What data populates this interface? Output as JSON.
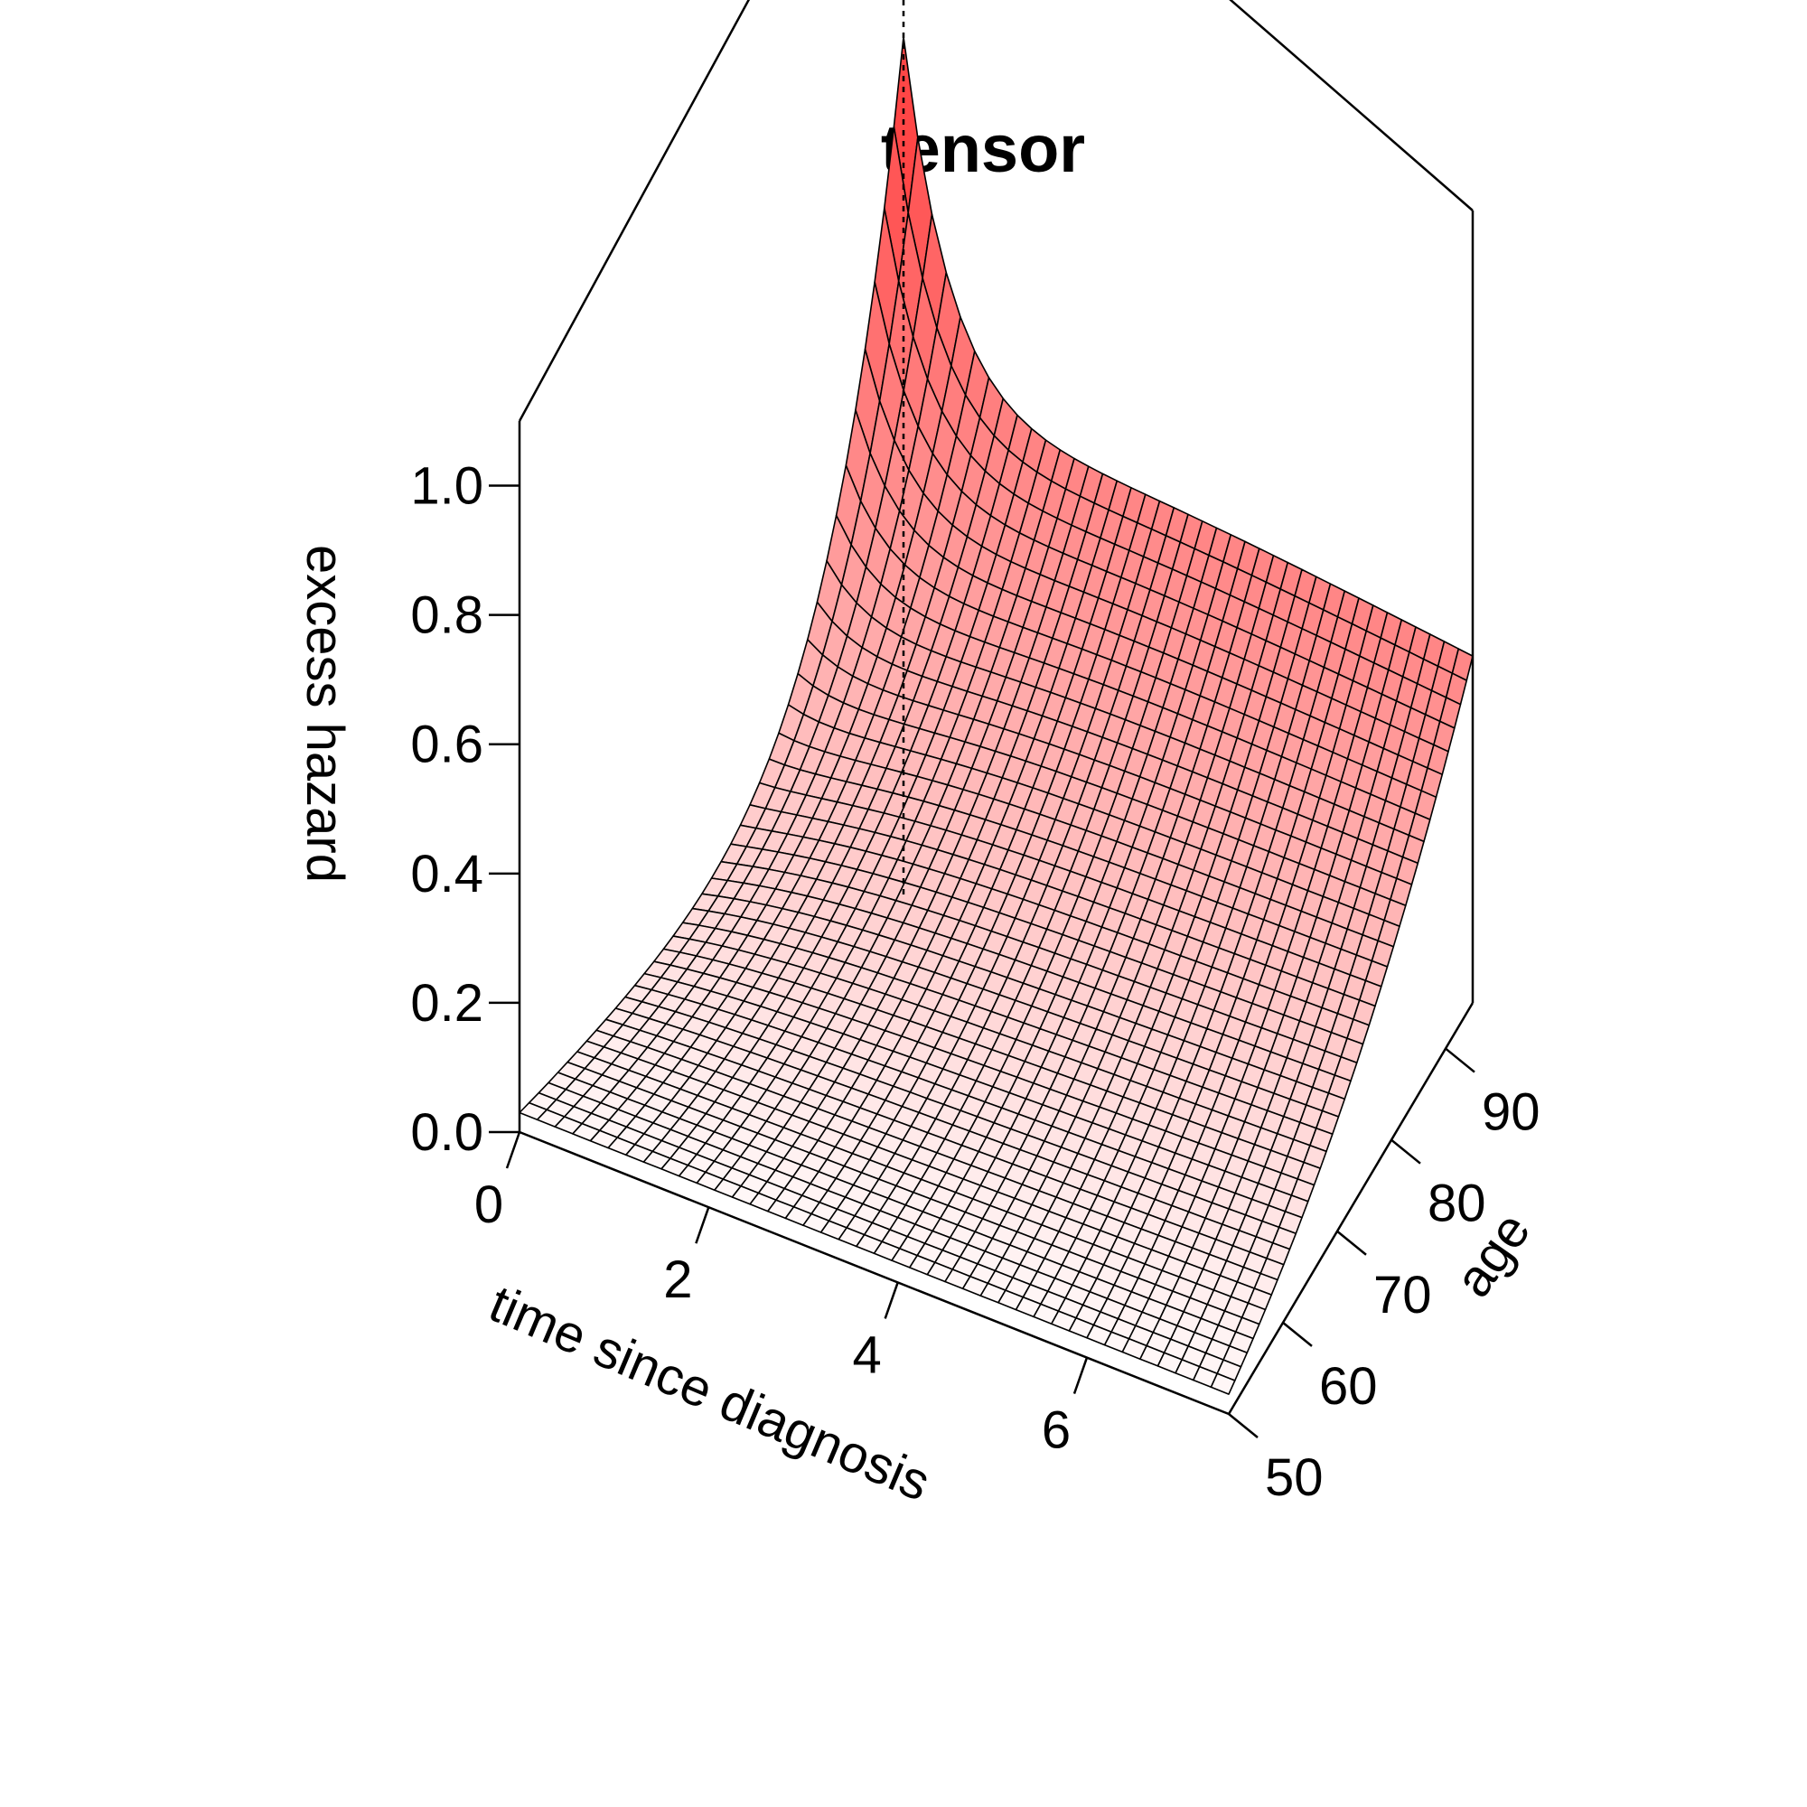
{
  "chart_data": {
    "type": "surface",
    "title": "tensor",
    "xlabel": "time since diagnosis",
    "ylabel": "age",
    "zlabel": "excess hazard",
    "xlim": [
      0,
      7.5
    ],
    "ylim": [
      50,
      95
    ],
    "zlim": [
      0,
      1.1
    ],
    "x_ticks": [
      "0",
      "2",
      "4",
      "6"
    ],
    "x_tick_values": [
      0,
      2,
      4,
      6
    ],
    "y_ticks": [
      "50",
      "60",
      "70",
      "80",
      "90"
    ],
    "y_tick_values": [
      50,
      60,
      70,
      80,
      90
    ],
    "z_ticks": [
      "0.0",
      "0.2",
      "0.4",
      "0.6",
      "0.8",
      "1.0"
    ],
    "z_tick_values": [
      0,
      0.2,
      0.4,
      0.6,
      0.8,
      1.0
    ],
    "grid_size": 40,
    "surface_samples": {
      "note_axes": "z at (time, age)",
      "points": [
        {
          "time": 0,
          "age": 50,
          "z": 0.03
        },
        {
          "time": 0,
          "age": 95,
          "z": 1.06
        },
        {
          "time": 7.5,
          "age": 50,
          "z": 0.01
        },
        {
          "time": 7.5,
          "age": 95,
          "z": 0.52
        },
        {
          "time": 3,
          "age": 80,
          "z": 0.25
        }
      ]
    },
    "colors": {
      "peak": "#ff0000",
      "base": "#ffffff",
      "mesh": "#000000"
    }
  }
}
